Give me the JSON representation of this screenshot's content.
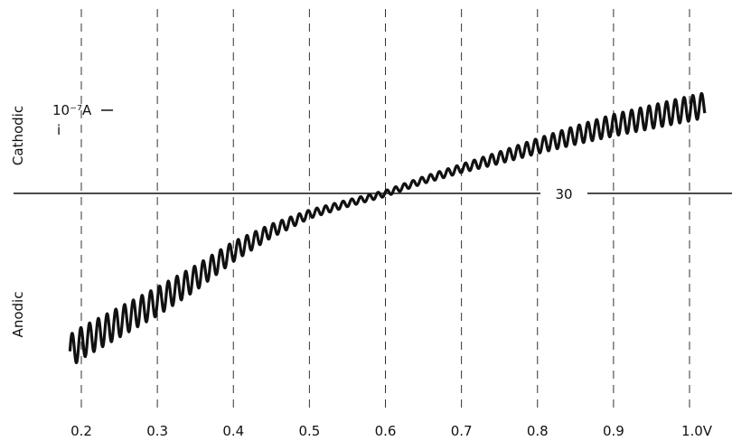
{
  "chart_data": {
    "type": "line",
    "title": "",
    "xlabel": "",
    "ylabel": "i",
    "y_unit_label": "10⁻⁷A",
    "y_top_label": "Cathodic",
    "y_bottom_label": "Anodic",
    "zero_line_label": "30",
    "x_ticks": [
      0.2,
      0.3,
      0.4,
      0.5,
      0.6,
      0.7,
      0.8,
      0.9,
      1.0
    ],
    "x_tick_labels": [
      "0.2",
      "0.3",
      "0.4",
      "0.5",
      "0.6",
      "0.7",
      "0.8",
      "0.9",
      "1.0V"
    ],
    "xlim": [
      0.185,
      1.035
    ],
    "ylim": [
      -2.25,
      1.2
    ],
    "grid": "vertical dashed",
    "series": [
      {
        "x": [
          0.185,
          0.2,
          0.25,
          0.3,
          0.35,
          0.4,
          0.45,
          0.5,
          0.55,
          0.6,
          0.65,
          0.7,
          0.75,
          0.8,
          0.85,
          0.9,
          0.95,
          1.0,
          1.02
        ],
        "y": [
          -1.9,
          -1.8,
          -1.55,
          -1.3,
          -1.02,
          -0.7,
          -0.45,
          -0.25,
          -0.12,
          0.0,
          0.16,
          0.3,
          0.43,
          0.57,
          0.7,
          0.82,
          0.92,
          1.02,
          1.06
        ],
        "oscillation_amplitude": [
          0.2,
          0.19,
          0.18,
          0.17,
          0.15,
          0.12,
          0.08,
          0.05,
          0.04,
          0.035,
          0.04,
          0.05,
          0.07,
          0.09,
          0.11,
          0.13,
          0.14,
          0.15,
          0.15
        ],
        "oscillation_period": 0.0115
      }
    ]
  }
}
